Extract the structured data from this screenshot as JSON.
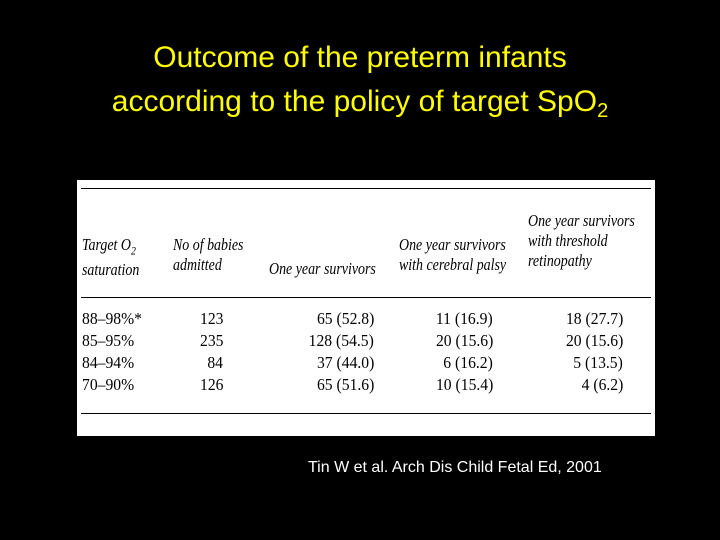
{
  "slide": {
    "title_line1": "Outcome of the preterm infants",
    "title_line2": "according to the policy of target Sp",
    "title_o": "O",
    "title_sub": "2",
    "citation": "Tin W et al. Arch Dis Child Fetal Ed, 2001"
  },
  "table": {
    "headers": {
      "target_line1": "Target O",
      "target_sub": "2",
      "target_line2": "saturation",
      "babies_line1": "No of babies",
      "babies_line2": "admitted",
      "survivors": "One year survivors",
      "palsy_line1": "One year survivors",
      "palsy_line2": "with cerebral palsy",
      "retino_line1": "One year survivors",
      "retino_line2": "with threshold",
      "retino_line3": "retinopathy"
    },
    "rows": [
      {
        "target": "88–98%*",
        "babies": "123",
        "survivors": "65 (52.8)",
        "palsy": "11 (16.9)",
        "retinopathy": "18 (27.7)"
      },
      {
        "target": "85–95%",
        "babies": "235",
        "survivors": "128 (54.5)",
        "palsy": "20 (15.6)",
        "retinopathy": "20 (15.6)"
      },
      {
        "target": "84–94%",
        "babies": "84",
        "survivors": "37 (44.0)",
        "palsy": "6 (16.2)",
        "retinopathy": "5 (13.5)"
      },
      {
        "target": "70–90%",
        "babies": "126",
        "survivors": "65 (51.6)",
        "palsy": "10 (15.4)",
        "retinopathy": "4 (6.2)"
      }
    ]
  }
}
